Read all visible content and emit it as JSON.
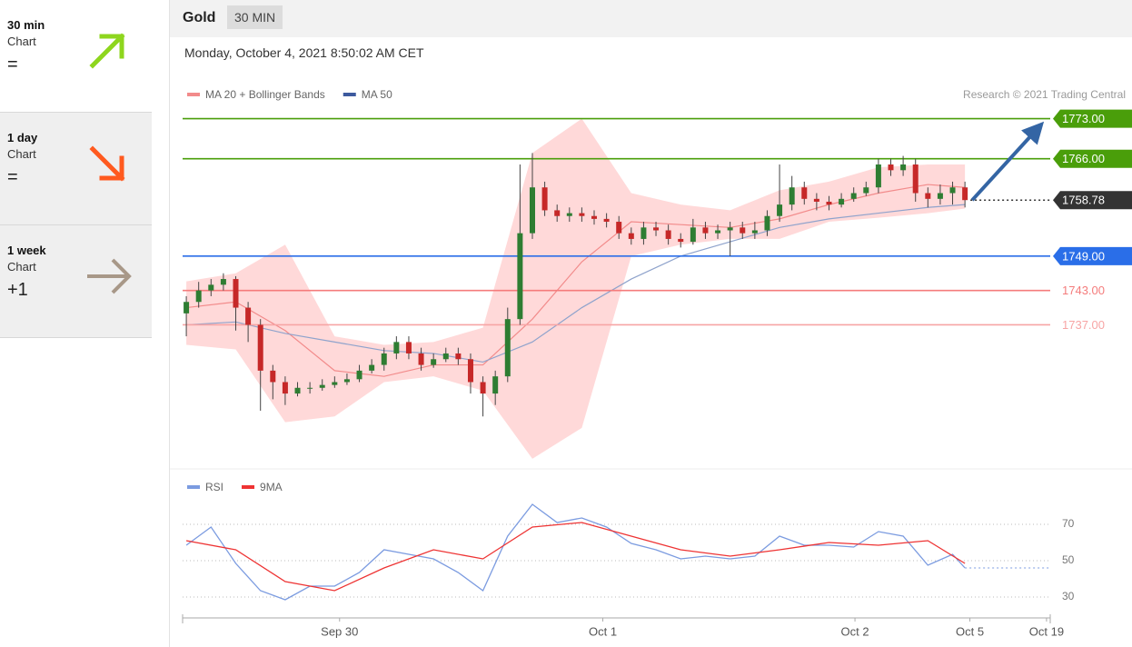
{
  "sidebar": [
    {
      "period": "30 min",
      "label": "Chart",
      "signal": "="
    },
    {
      "period": "1 day",
      "label": "Chart",
      "signal": "="
    },
    {
      "period": "1 week",
      "label": "Chart",
      "signal": "+1"
    }
  ],
  "header": {
    "title": "Gold",
    "timeframe": "30 MIN",
    "timestamp": "Monday, October 4, 2021 8:50:02 AM CET"
  },
  "chart_data": [
    {
      "type": "candlestick",
      "credit": "Research © 2021 Trading Central",
      "up_color": "#2e7d32",
      "down_color": "#c62828",
      "open": [
        1739,
        1741,
        1743,
        1744,
        1745,
        1740,
        1737,
        1729,
        1727,
        1725,
        1726,
        1726,
        1726.5,
        1727,
        1727.5,
        1729,
        1730,
        1732,
        1734,
        1732,
        1730,
        1731,
        1732,
        1731,
        1727,
        1725,
        1728,
        1738,
        1753,
        1761,
        1757,
        1756,
        1756.5,
        1756,
        1755.5,
        1755,
        1753,
        1752,
        1754,
        1753.5,
        1752,
        1751.5,
        1754,
        1753,
        1753.5,
        1754,
        1753,
        1753.5,
        1756,
        1758,
        1761,
        1759,
        1758.5,
        1758,
        1759,
        1760,
        1761,
        1765,
        1764,
        1765,
        1760,
        1759,
        1760,
        1761
      ],
      "high": [
        1742,
        1744.5,
        1745,
        1746,
        1745.5,
        1741,
        1738,
        1730,
        1728,
        1727,
        1727,
        1727.5,
        1728,
        1728.5,
        1730,
        1731,
        1733,
        1735,
        1735,
        1733,
        1732,
        1733,
        1733,
        1732,
        1728,
        1729,
        1740,
        1765,
        1767,
        1762,
        1758,
        1757.5,
        1757.5,
        1757,
        1756.5,
        1756,
        1754,
        1755,
        1755,
        1754.5,
        1753,
        1755.5,
        1755,
        1754.5,
        1755,
        1755,
        1755,
        1757,
        1765,
        1763,
        1762,
        1760,
        1759.5,
        1760,
        1761,
        1762,
        1766,
        1766,
        1766.5,
        1766,
        1761,
        1761.5,
        1762,
        1762
      ],
      "low": [
        1735,
        1740,
        1742,
        1743,
        1736,
        1734,
        1722,
        1724,
        1723,
        1724.5,
        1725,
        1725.5,
        1726,
        1726.5,
        1727,
        1728.5,
        1729,
        1731,
        1731,
        1729,
        1729.5,
        1730.5,
        1730,
        1725,
        1721,
        1723,
        1727,
        1737,
        1752,
        1756,
        1755,
        1755,
        1755,
        1754.5,
        1754,
        1752,
        1751,
        1751,
        1752.5,
        1751,
        1750.5,
        1751,
        1752,
        1752,
        1749,
        1752,
        1752,
        1752.5,
        1755,
        1757,
        1758,
        1757,
        1757,
        1757.5,
        1758.5,
        1759.5,
        1760,
        1763,
        1763,
        1758.5,
        1757.5,
        1758,
        1758,
        1757.5
      ],
      "close": [
        1741,
        1743,
        1744,
        1745,
        1740,
        1737,
        1729,
        1727,
        1725,
        1726,
        1726,
        1726.5,
        1727,
        1727.5,
        1729,
        1730,
        1732,
        1734,
        1732,
        1730,
        1731,
        1732,
        1731,
        1727,
        1725,
        1728,
        1738,
        1753,
        1761,
        1757,
        1756,
        1756.5,
        1756,
        1755.5,
        1755,
        1753,
        1752,
        1754,
        1753.5,
        1752,
        1751.5,
        1754,
        1753,
        1753.5,
        1754,
        1753,
        1753.5,
        1756,
        1758,
        1761,
        1759,
        1758.5,
        1758,
        1759,
        1760,
        1761,
        1765,
        1764,
        1765,
        1760,
        1759,
        1760,
        1761,
        1758.78
      ],
      "xlim": [
        -0.3,
        69.9
      ],
      "ylim": [
        1712,
        1775
      ],
      "series": [
        {
          "name": "MA 20 + Bollinger Bands",
          "color": "#f28b8b",
          "band_color": "#ffd9d9",
          "x": [
            0,
            4,
            8,
            12,
            16,
            20,
            24,
            28,
            32,
            36,
            40,
            44,
            48,
            52,
            56,
            60,
            63
          ],
          "values": [
            1740,
            1741,
            1736,
            1729,
            1728,
            1730,
            1730,
            1738,
            1748,
            1755,
            1754.5,
            1754,
            1755.5,
            1758,
            1760,
            1761.5,
            1761
          ],
          "upper": [
            1744.6,
            1746,
            1751,
            1735,
            1733.5,
            1734,
            1736.5,
            1767,
            1773,
            1760,
            1758,
            1757,
            1760.5,
            1762,
            1764.5,
            1765,
            1765
          ],
          "lower": [
            1733.5,
            1732.7,
            1720,
            1721,
            1727,
            1728,
            1725.5,
            1713.6,
            1719,
            1749,
            1751,
            1752,
            1752,
            1755,
            1755.7,
            1756.5,
            1757.3
          ]
        },
        {
          "name": "MA 50",
          "color": "#3d5a9e",
          "line_color": "#8fa3cc",
          "x": [
            0,
            4,
            8,
            12,
            16,
            20,
            24,
            28,
            32,
            36,
            40,
            44,
            48,
            52,
            56,
            60,
            63
          ],
          "values": [
            1737,
            1737.5,
            1735.5,
            1734,
            1732.5,
            1732,
            1730.5,
            1734,
            1740,
            1745,
            1749,
            1751.5,
            1754,
            1755.5,
            1756.5,
            1757.5,
            1758
          ]
        }
      ],
      "levels": [
        {
          "value": 1773,
          "label": "1773.00",
          "color": "#4a9e0a",
          "boxed": true,
          "style": "solid"
        },
        {
          "value": 1766,
          "label": "1766.00",
          "color": "#4a9e0a",
          "boxed": true,
          "style": "solid"
        },
        {
          "value": 1758.78,
          "label": "1758.78",
          "color": "#333333",
          "boxed": true,
          "style": "dotted"
        },
        {
          "value": 1749,
          "label": "1749.00",
          "color": "#2a6ee8",
          "boxed": true,
          "style": "solid"
        },
        {
          "value": 1743,
          "label": "1743.00",
          "color": "#f47c7c",
          "boxed": false,
          "style": "solid"
        },
        {
          "value": 1737,
          "label": "1737.00",
          "color": "#f7a5a5",
          "boxed": false,
          "style": "solid"
        }
      ],
      "arrow_color": "#3465a4"
    },
    {
      "type": "line",
      "xlim": [
        -0.3,
        69.9
      ],
      "xticks": [
        {
          "value": 12.4,
          "label": "Sep 30"
        },
        {
          "value": 33.7,
          "label": "Oct 1"
        },
        {
          "value": 54.1,
          "label": "Oct 2"
        },
        {
          "value": 63.4,
          "label": "Oct 5"
        },
        {
          "value": 69.6,
          "label": "Oct 19"
        }
      ],
      "ylim": [
        20,
        85
      ],
      "yticks": [
        30,
        50,
        70
      ],
      "grid": true,
      "series": [
        {
          "name": "RSI",
          "color": "#7b9be0",
          "x": [
            0,
            2,
            4,
            6,
            8,
            10,
            12,
            14,
            16,
            18,
            20,
            22,
            24,
            26,
            28,
            30,
            32,
            34,
            36,
            38,
            40,
            42,
            44,
            46,
            48,
            50,
            52,
            54,
            56,
            58,
            60,
            62,
            63
          ],
          "values": [
            58.5,
            68.5,
            48.5,
            33.5,
            28.5,
            36,
            36,
            43.5,
            56,
            53.5,
            51,
            43.5,
            33.5,
            63.5,
            81,
            71,
            73.5,
            68.5,
            59.5,
            56,
            51,
            52.5,
            51,
            52.5,
            63.5,
            58.5,
            58.5,
            57.5,
            66,
            63.5,
            47.5,
            53.5,
            46
          ]
        },
        {
          "name": "9MA",
          "color": "#ee3333",
          "x": [
            0,
            4,
            8,
            12,
            16,
            20,
            24,
            28,
            32,
            36,
            40,
            44,
            48,
            52,
            56,
            60,
            63
          ],
          "values": [
            61,
            56,
            38.5,
            33.5,
            46,
            56,
            51,
            68.5,
            71,
            63.5,
            56,
            52.5,
            56,
            60,
            58.5,
            61,
            48.5
          ]
        }
      ]
    }
  ]
}
